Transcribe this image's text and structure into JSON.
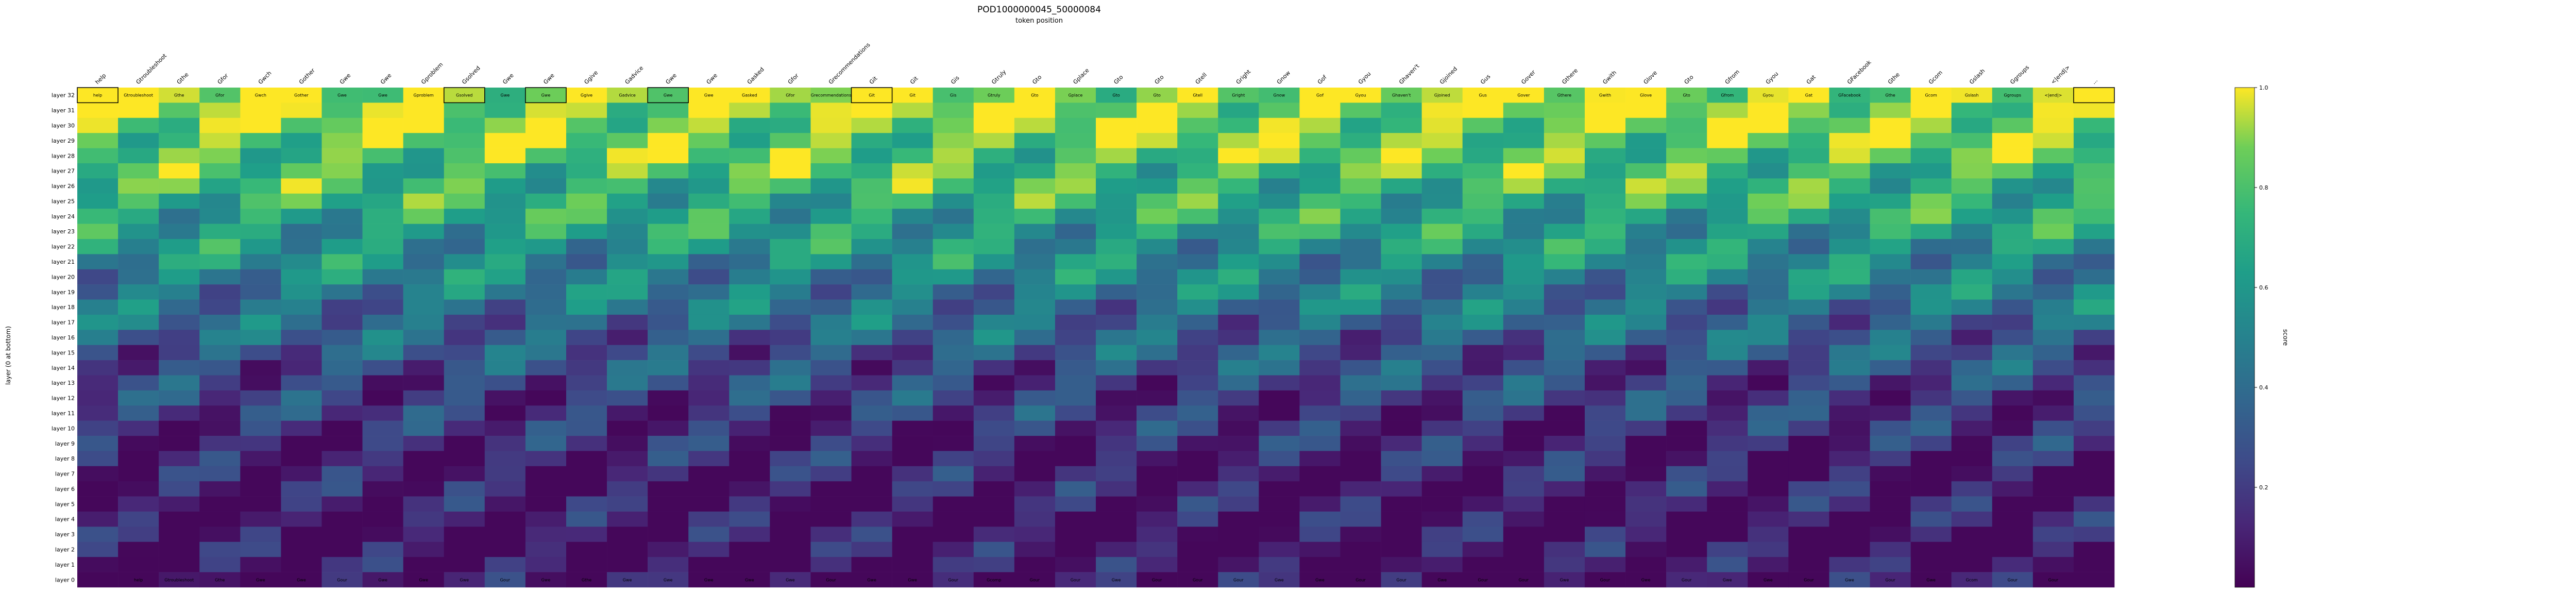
{
  "chart_data": {
    "type": "heatmap",
    "title": "POD1000000045_50000084",
    "subtitle": "token position",
    "ylabel": "layer (0 at bottom)",
    "colorbar_label": "score",
    "colormap": "viridis",
    "vmin": 0.0,
    "vmax": 1.0,
    "colorbar_ticks": [
      "0.2",
      "0.4",
      "0.6",
      "0.8",
      "1.0"
    ],
    "tokens": [
      "help",
      "Gtroubleshoot",
      "Gthe",
      "Gfor",
      "Gwch",
      "Gother",
      "Gwe",
      "Gwe",
      "Gproblem",
      "Gsolved",
      "Gwe",
      "Gwe",
      "Ggive",
      "Gadvice",
      "Gwe",
      "Gwe",
      "Gasked",
      "Gfor",
      "Grecommendations",
      "Git",
      "Git",
      "Gis",
      "Gtruly",
      "Gto",
      "Gplace",
      "Gto",
      "Gto",
      "Gtell",
      "Gright",
      "Gnow",
      "Gof",
      "Gyou",
      "Ghaven't",
      "Gjoined",
      "Gus",
      "Gover",
      "Gthere",
      "Gwith",
      "Glove",
      "Gto",
      "Gfrom",
      "Gyou",
      "Gat",
      "GFacebook",
      "Gthe",
      "Gcom",
      "Gslash",
      "Ggroups",
      "<|end|>",
      "..."
    ],
    "top_row_tokens": [
      "help",
      "Gtroubleshoot",
      "Gthe",
      "Gfor",
      "Gwch",
      "Gother",
      "Gwe",
      "Gwe",
      "Gproblem",
      "Gsolved",
      "Gwe",
      "Gwe",
      "Ggive",
      "Gadvice",
      "Gwe",
      "Gwe",
      "Gasked",
      "Gfor",
      "Grecommendations",
      "Git",
      "Git",
      "Gis",
      "Gtruly",
      "Gto",
      "Gplace",
      "Gto",
      "Gto",
      "Gtell",
      "Gright",
      "Gnow",
      "Gof",
      "Gyou",
      "Ghaven't",
      "Gjoined",
      "Gus",
      "Gover",
      "Gthere",
      "Gwith",
      "Glove",
      "Gto",
      "Gfrom",
      "Gyou",
      "Gat",
      "GFacebook",
      "Gthe",
      "Gcom",
      "Gslash",
      "Ggroups",
      "<|end|>"
    ],
    "bottom_row_tokens": [
      "",
      "help",
      "Gtroubleshoot",
      "Gthe",
      "Gwe",
      "Gwe",
      "Gour",
      "Gwe",
      "Gwe",
      "Gwe",
      "Gour",
      "Gwe",
      "Gthe",
      "Gwe",
      "Gwe",
      "Gwe",
      "Gwe",
      "Gwe",
      "Gour",
      "Gwe",
      "Gwe",
      "Gour",
      "Gcomp",
      "Gour",
      "Gour",
      "Gwe",
      "Gour",
      "Gour",
      "Gour",
      "Gwe",
      "Gwe",
      "Gour",
      "Gour",
      "Gwe",
      "Gour",
      "Gour",
      "Gwe",
      "Gour",
      "Gwe",
      "Gour",
      "Gwe",
      "Gwe",
      "Gour",
      "Gwe",
      "Gour",
      "Gwe",
      "Gcom",
      "Gour",
      "Gour"
    ],
    "layers": [
      "layer 32",
      "layer 31",
      "layer 30",
      "layer 29",
      "layer 28",
      "layer 27",
      "layer 26",
      "layer 25",
      "layer 24",
      "layer 23",
      "layer 22",
      "layer 21",
      "layer 20",
      "layer 19",
      "layer 18",
      "layer 17",
      "layer 16",
      "layer 15",
      "layer 14",
      "layer 13",
      "layer 12",
      "layer 11",
      "layer 10",
      "layer 9",
      "layer 8",
      "layer 7",
      "layer 6",
      "layer 5",
      "layer 4",
      "layer 3",
      "layer 2",
      "layer 1",
      "layer 0"
    ],
    "score_by_layer": [
      0.95,
      0.92,
      0.88,
      0.85,
      0.82,
      0.78,
      0.74,
      0.7,
      0.66,
      0.62,
      0.58,
      0.54,
      0.5,
      0.46,
      0.42,
      0.38,
      0.34,
      0.3,
      0.27,
      0.24,
      0.21,
      0.18,
      0.15,
      0.13,
      0.11,
      0.09,
      0.08,
      0.07,
      0.06,
      0.05,
      0.05,
      0.04,
      0.03
    ],
    "highlighted_top_cells": [
      0,
      9,
      11,
      14,
      19,
      49
    ]
  }
}
